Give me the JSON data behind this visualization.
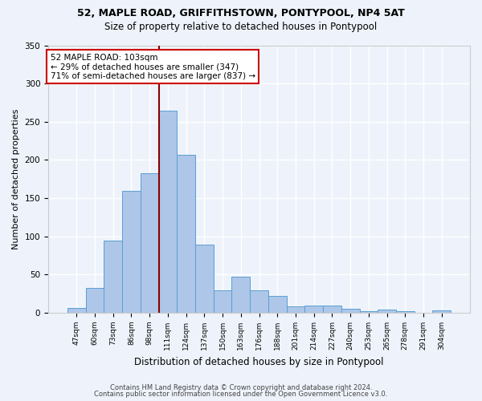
{
  "title1": "52, MAPLE ROAD, GRIFFITHSTOWN, PONTYPOOL, NP4 5AT",
  "title2": "Size of property relative to detached houses in Pontypool",
  "xlabel": "Distribution of detached houses by size in Pontypool",
  "ylabel": "Number of detached properties",
  "categories": [
    "47sqm",
    "60sqm",
    "73sqm",
    "86sqm",
    "98sqm",
    "111sqm",
    "124sqm",
    "137sqm",
    "150sqm",
    "163sqm",
    "176sqm",
    "188sqm",
    "201sqm",
    "214sqm",
    "227sqm",
    "240sqm",
    "253sqm",
    "265sqm",
    "278sqm",
    "291sqm",
    "304sqm"
  ],
  "values": [
    6,
    33,
    95,
    160,
    183,
    265,
    207,
    89,
    29,
    47,
    29,
    22,
    8,
    10,
    10,
    5,
    2,
    4,
    2,
    0,
    3
  ],
  "bar_color": "#aec6e8",
  "bar_edge_color": "#5a9fd4",
  "background_color": "#eef3fb",
  "grid_color": "#ffffff",
  "vline_x": 4.5,
  "vline_color": "#8b0000",
  "annotation_text": "52 MAPLE ROAD: 103sqm\n← 29% of detached houses are smaller (347)\n71% of semi-detached houses are larger (837) →",
  "annotation_box_color": "#ffffff",
  "annotation_box_edge": "#cc0000",
  "footer1": "Contains HM Land Registry data © Crown copyright and database right 2024.",
  "footer2": "Contains public sector information licensed under the Open Government Licence v3.0.",
  "ylim": [
    0,
    350
  ],
  "yticks": [
    0,
    50,
    100,
    150,
    200,
    250,
    300,
    350
  ]
}
